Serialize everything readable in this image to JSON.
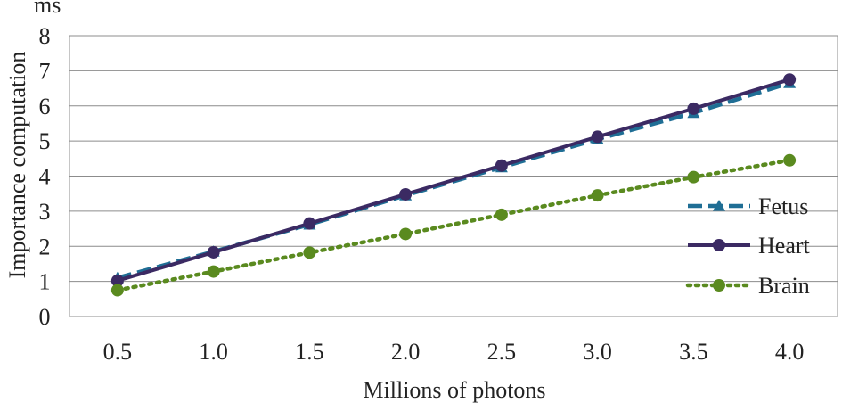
{
  "chart_data": {
    "type": "line",
    "title": "",
    "unit_label": "ms",
    "xlabel": "Millions of photons",
    "ylabel": "Importance computation",
    "x": [
      "0.5",
      "1.0",
      "1.5",
      "2.0",
      "2.5",
      "3.0",
      "3.5",
      "4.0"
    ],
    "ylim": [
      0,
      8
    ],
    "yticks": [
      "0",
      "1",
      "2",
      "3",
      "4",
      "5",
      "6",
      "7",
      "8"
    ],
    "grid": true,
    "legend_position": "right",
    "series": [
      {
        "name": "Fetus",
        "values": [
          1.1,
          1.85,
          2.62,
          3.45,
          4.25,
          5.05,
          5.8,
          6.65
        ],
        "color": "#1f6e95",
        "line_style": "dashed",
        "marker": "triangle"
      },
      {
        "name": "Heart",
        "values": [
          1.02,
          1.83,
          2.65,
          3.48,
          4.3,
          5.12,
          5.92,
          6.75
        ],
        "color": "#3b2a63",
        "line_style": "solid",
        "marker": "circle"
      },
      {
        "name": "Brain",
        "values": [
          0.75,
          1.28,
          1.82,
          2.35,
          2.9,
          3.45,
          3.97,
          4.45
        ],
        "color": "#5a8a1f",
        "line_style": "dotted",
        "marker": "circle"
      }
    ]
  }
}
